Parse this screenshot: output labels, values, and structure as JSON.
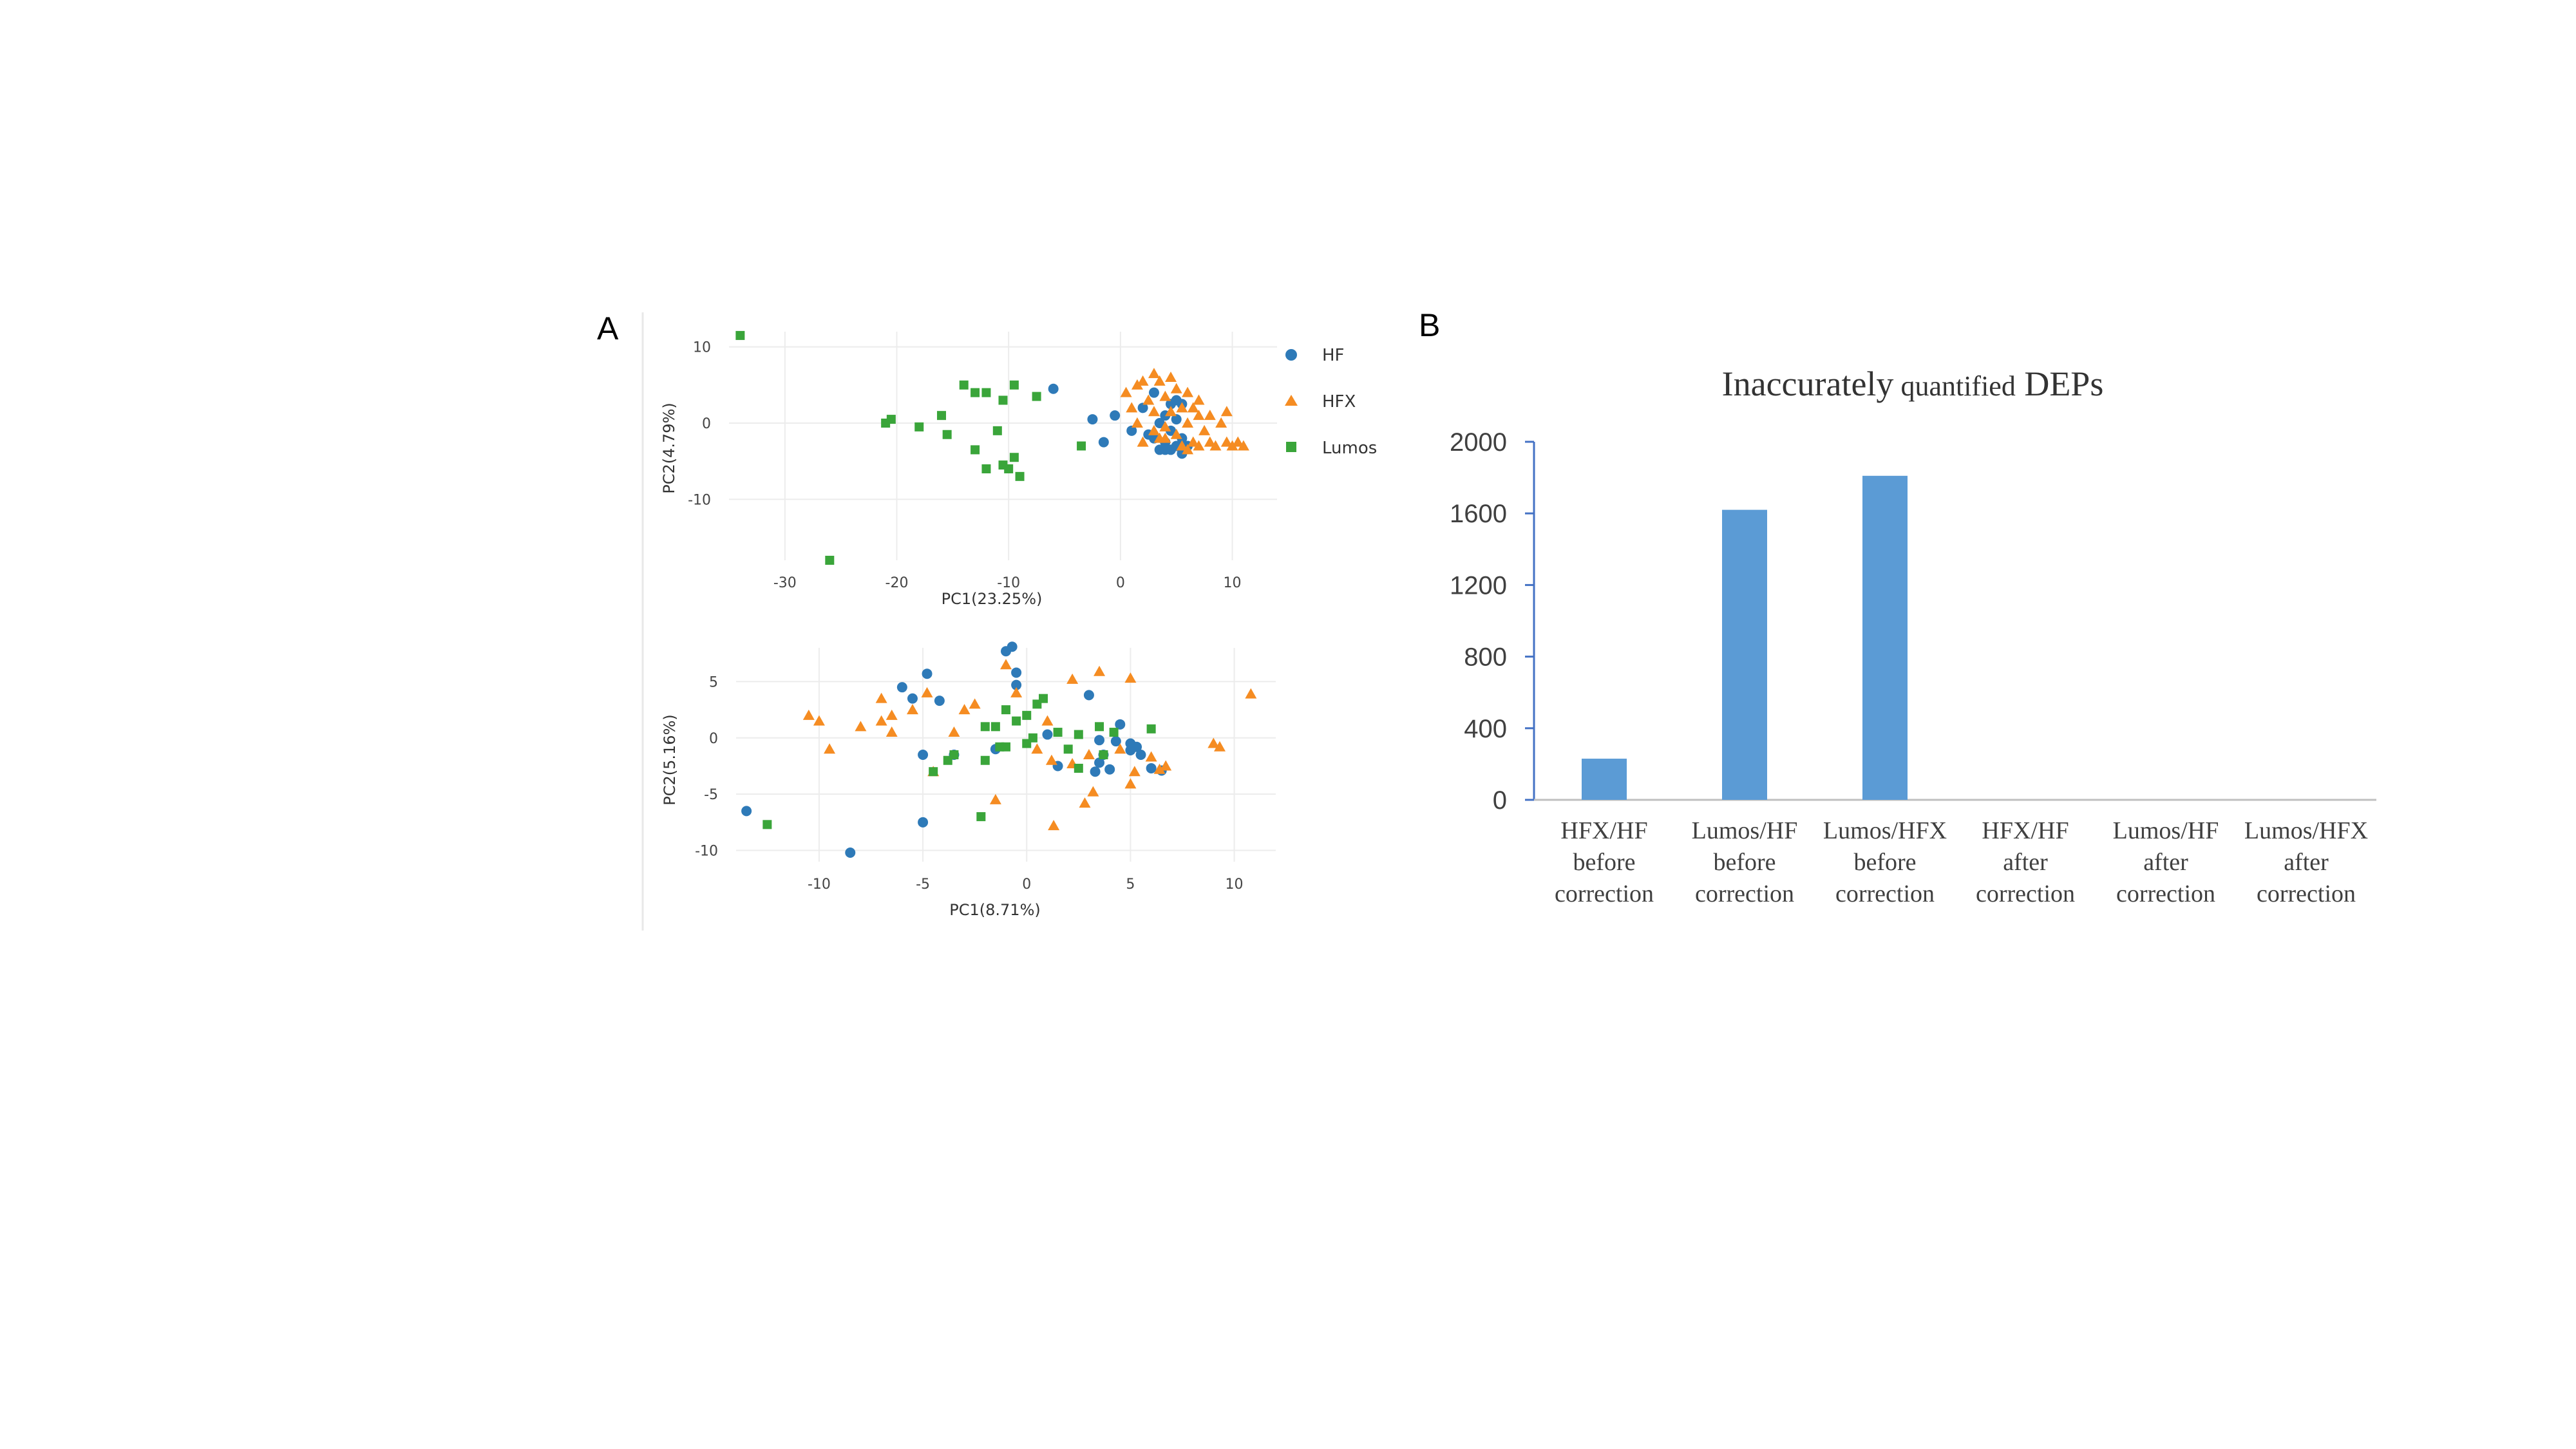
{
  "panels": {
    "a": "A",
    "b": "B"
  },
  "colors": {
    "HF": "#2e7ab8",
    "HFX": "#f58c22",
    "Lumos": "#3aa53a",
    "bar": "#5b9bd5",
    "grid": "#ececec",
    "axis": "#4472c4"
  },
  "legend": [
    {
      "name": "HF",
      "shape": "circle"
    },
    {
      "name": "HFX",
      "shape": "triangle"
    },
    {
      "name": "Lumos",
      "shape": "square"
    }
  ],
  "chart_data": [
    {
      "type": "scatter",
      "xlabel": "PC1(23.25%)",
      "ylabel": "PC2(4.79%)",
      "xlim": [
        -35,
        14
      ],
      "ylim": [
        -18,
        12
      ],
      "xticks": [
        -30,
        -20,
        -10,
        0,
        10
      ],
      "yticks": [
        10,
        0,
        -10
      ],
      "xtick_labels": [
        "-30",
        "-20",
        "-10",
        "0",
        "10"
      ],
      "ytick_labels": [
        "10",
        "0",
        "-10"
      ],
      "grid": true,
      "legend_position": "right",
      "series": [
        {
          "name": "HF",
          "shape": "circle",
          "points": [
            [
              -6,
              4.5
            ],
            [
              -2.5,
              0.5
            ],
            [
              -1.5,
              -2.5
            ],
            [
              -0.5,
              1
            ],
            [
              1,
              -1
            ],
            [
              2,
              2
            ],
            [
              2.5,
              -1.5
            ],
            [
              3,
              4
            ],
            [
              3.5,
              0
            ],
            [
              3.5,
              -3.5
            ],
            [
              4,
              1
            ],
            [
              4,
              -2.5
            ],
            [
              4,
              -3.5
            ],
            [
              4.5,
              2.5
            ],
            [
              4.5,
              -1
            ],
            [
              5,
              3
            ],
            [
              5,
              -3
            ],
            [
              5,
              0.5
            ],
            [
              5.5,
              -2
            ],
            [
              5.5,
              -4
            ],
            [
              3,
              -2
            ],
            [
              6,
              -3
            ],
            [
              5.5,
              2.5
            ],
            [
              4.5,
              -3.5
            ]
          ]
        },
        {
          "name": "HFX",
          "shape": "triangle",
          "points": [
            [
              0.5,
              4
            ],
            [
              1,
              2
            ],
            [
              1.5,
              5
            ],
            [
              1.5,
              0
            ],
            [
              2,
              5.5
            ],
            [
              2.5,
              3
            ],
            [
              3,
              6.5
            ],
            [
              3,
              1.5
            ],
            [
              3,
              -1
            ],
            [
              3.5,
              5.5
            ],
            [
              3.5,
              -2
            ],
            [
              4,
              3.5
            ],
            [
              4,
              -0.5
            ],
            [
              4.5,
              6
            ],
            [
              4.5,
              1.5
            ],
            [
              5,
              4.5
            ],
            [
              5,
              -1.5
            ],
            [
              5.5,
              2
            ],
            [
              5.5,
              -3
            ],
            [
              6,
              4
            ],
            [
              6,
              0
            ],
            [
              6.5,
              -2.5
            ],
            [
              6.5,
              2
            ],
            [
              7,
              -3
            ],
            [
              7,
              3
            ],
            [
              7.5,
              -1
            ],
            [
              8,
              1
            ],
            [
              8,
              -2.5
            ],
            [
              8.5,
              -3
            ],
            [
              9,
              0
            ],
            [
              9.5,
              -2.5
            ],
            [
              9.5,
              1.5
            ],
            [
              10,
              -3
            ],
            [
              10.5,
              -2.5
            ],
            [
              11,
              -3
            ],
            [
              2,
              -2.5
            ],
            [
              6,
              -3.5
            ],
            [
              7,
              1
            ],
            [
              4,
              -2
            ]
          ]
        },
        {
          "name": "Lumos",
          "shape": "square",
          "points": [
            [
              -34,
              11.5
            ],
            [
              -26,
              -18
            ],
            [
              -21,
              0
            ],
            [
              -20.5,
              0.5
            ],
            [
              -18,
              -0.5
            ],
            [
              -16,
              1
            ],
            [
              -15.5,
              -1.5
            ],
            [
              -14,
              5
            ],
            [
              -13,
              4
            ],
            [
              -13,
              -3.5
            ],
            [
              -12,
              4
            ],
            [
              -12,
              -6
            ],
            [
              -11,
              -1
            ],
            [
              -10.5,
              3
            ],
            [
              -10.5,
              -5.5
            ],
            [
              -10,
              -6
            ],
            [
              -9.5,
              -4.5
            ],
            [
              -9.5,
              5
            ],
            [
              -9,
              -7
            ],
            [
              -7.5,
              3.5
            ],
            [
              -3.5,
              -3
            ]
          ]
        }
      ]
    },
    {
      "type": "scatter",
      "xlabel": "PC1(8.71%)",
      "ylabel": "PC2(5.16%)",
      "xlim": [
        -14,
        12
      ],
      "ylim": [
        -11,
        8
      ],
      "xticks": [
        -10,
        -5,
        0,
        5,
        10
      ],
      "yticks": [
        5,
        0,
        -5,
        -10
      ],
      "xtick_labels": [
        "-10",
        "-5",
        "0",
        "5",
        "10"
      ],
      "ytick_labels": [
        "5",
        "0",
        "-5",
        "-10"
      ],
      "grid": true,
      "series": [
        {
          "name": "HF",
          "shape": "circle",
          "points": [
            [
              -13.5,
              -6.5
            ],
            [
              -8.5,
              -10.2
            ],
            [
              -6,
              4.5
            ],
            [
              -5.5,
              3.5
            ],
            [
              -5,
              -1.5
            ],
            [
              -5,
              -7.5
            ],
            [
              -4.8,
              5.7
            ],
            [
              -4.2,
              3.3
            ],
            [
              -3.5,
              -1.5
            ],
            [
              -1.5,
              -1
            ],
            [
              -1,
              7.7
            ],
            [
              -0.7,
              8.1
            ],
            [
              -0.5,
              5.8
            ],
            [
              -0.5,
              4.7
            ],
            [
              1,
              0.3
            ],
            [
              1.5,
              -2.5
            ],
            [
              3,
              3.8
            ],
            [
              3.5,
              -0.2
            ],
            [
              3.5,
              -2.2
            ],
            [
              3.7,
              -1.5
            ],
            [
              4,
              -2.8
            ],
            [
              4.3,
              -0.3
            ],
            [
              5,
              -0.5
            ],
            [
              5,
              -1.1
            ],
            [
              4.5,
              1.2
            ],
            [
              5.3,
              -0.8
            ],
            [
              5.5,
              -1.5
            ],
            [
              6,
              -2.7
            ],
            [
              6.5,
              -2.9
            ],
            [
              3.3,
              -3
            ]
          ]
        },
        {
          "name": "HFX",
          "shape": "triangle",
          "points": [
            [
              -10.5,
              2
            ],
            [
              -10,
              1.5
            ],
            [
              -9.5,
              -1
            ],
            [
              -8,
              1
            ],
            [
              -7,
              3.5
            ],
            [
              -6.5,
              0.5
            ],
            [
              -6.5,
              2
            ],
            [
              -5.5,
              2.5
            ],
            [
              -4.8,
              4
            ],
            [
              -4.5,
              -3
            ],
            [
              -3.5,
              0.5
            ],
            [
              -3,
              2.5
            ],
            [
              -1.5,
              -5.5
            ],
            [
              -1,
              6.5
            ],
            [
              -0.5,
              4
            ],
            [
              0.5,
              -1
            ],
            [
              1,
              1.5
            ],
            [
              1.2,
              -2
            ],
            [
              1.3,
              -7.8
            ],
            [
              2.2,
              -2.3
            ],
            [
              2.2,
              5.2
            ],
            [
              3,
              -1.5
            ],
            [
              3.2,
              -4.8
            ],
            [
              3.5,
              5.9
            ],
            [
              4.5,
              -1
            ],
            [
              5,
              5.3
            ],
            [
              5.2,
              -3
            ],
            [
              5,
              -4.1
            ],
            [
              6,
              -1.7
            ],
            [
              6.4,
              -2.8
            ],
            [
              6.7,
              -2.5
            ],
            [
              9,
              -0.5
            ],
            [
              9.3,
              -0.8
            ],
            [
              10.8,
              3.9
            ],
            [
              2.8,
              -5.8
            ],
            [
              -2.5,
              3
            ],
            [
              -7,
              1.5
            ]
          ]
        },
        {
          "name": "Lumos",
          "shape": "square",
          "points": [
            [
              -12.5,
              -7.7
            ],
            [
              -4.5,
              -3
            ],
            [
              -3.8,
              -2
            ],
            [
              -3.5,
              -1.5
            ],
            [
              -2.2,
              -7
            ],
            [
              -2,
              1
            ],
            [
              -2,
              -2
            ],
            [
              -1.5,
              1
            ],
            [
              -1.3,
              -0.8
            ],
            [
              -1,
              2.5
            ],
            [
              -0.5,
              1.5
            ],
            [
              0,
              2
            ],
            [
              0,
              -0.5
            ],
            [
              0.3,
              0
            ],
            [
              0.5,
              3
            ],
            [
              0.8,
              3.5
            ],
            [
              1.5,
              0.5
            ],
            [
              2,
              -1
            ],
            [
              2.5,
              -2.7
            ],
            [
              2.5,
              0.3
            ],
            [
              3.5,
              1
            ],
            [
              3.7,
              -1.5
            ],
            [
              4.2,
              0.5
            ],
            [
              6,
              0.8
            ],
            [
              -1,
              -0.8
            ]
          ]
        }
      ]
    },
    {
      "type": "bar",
      "title_main": "Inaccurately",
      "title_small": " quantified",
      "title_end": " DEPs",
      "categories": [
        [
          "HFX/HF",
          "before",
          "correction"
        ],
        [
          "Lumos/HF",
          "before",
          "correction"
        ],
        [
          "Lumos/HFX",
          "before",
          "correction"
        ],
        [
          "HFX/HF",
          "after",
          "correction"
        ],
        [
          "Lumos/HF",
          "after",
          "correction"
        ],
        [
          "Lumos/HFX",
          "after",
          "correction"
        ]
      ],
      "values": [
        230,
        1620,
        1810,
        0,
        0,
        0
      ],
      "ylim": [
        0,
        2000
      ],
      "yticks": [
        0,
        400,
        800,
        1200,
        1600,
        2000
      ],
      "ytick_labels": [
        "0",
        "400",
        "800",
        "1200",
        "1600",
        "2000"
      ],
      "grid": false
    }
  ]
}
